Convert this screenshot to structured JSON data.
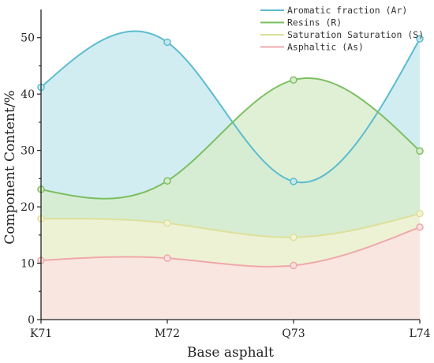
{
  "chart_data": {
    "type": "area",
    "categories": [
      "K71",
      "M72",
      "Q73",
      "L74"
    ],
    "series": [
      {
        "name": "Aromatic fraction (Ar)",
        "values": [
          41.2,
          49.2,
          24.5,
          49.8
        ],
        "color": "#5bbccf",
        "fill": "#c6e8ef"
      },
      {
        "name": "Resins (R)",
        "values": [
          23.1,
          24.6,
          42.5,
          29.9
        ],
        "color": "#7cbf62",
        "fill": "#d8eccb"
      },
      {
        "name": "Saturation Saturation (S)",
        "values": [
          17.9,
          17.1,
          14.6,
          18.8
        ],
        "color": "#dde09a",
        "fill": "#f3f3d6"
      },
      {
        "name": "Asphaltic (As)",
        "values": [
          10.5,
          10.9,
          9.6,
          16.4
        ],
        "color": "#f0a8a8",
        "fill": "#fbe2e2"
      }
    ],
    "xlabel": "Base asphalt",
    "ylabel": "Component Content/%",
    "ylim": [
      0,
      55
    ],
    "yticks": [
      0,
      10,
      20,
      30,
      40,
      50
    ],
    "grid": false,
    "legend_position": "top-right"
  }
}
